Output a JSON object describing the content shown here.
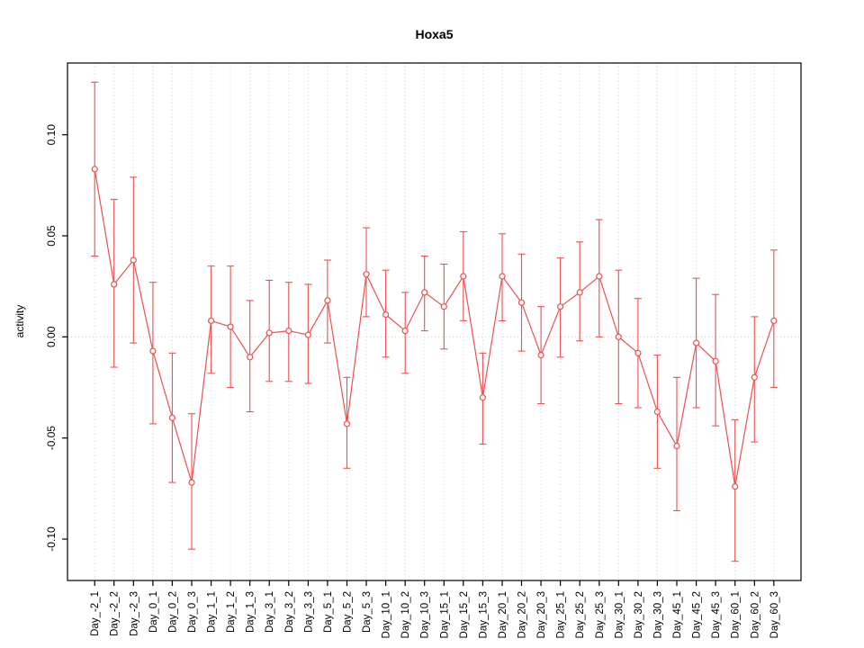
{
  "chart_data": {
    "type": "line",
    "title": "Hoxa5",
    "xlabel": "",
    "ylabel": "activity",
    "ylim": [
      -0.1205,
      0.1355
    ],
    "yticks": [
      -0.1,
      -0.05,
      0.0,
      0.05,
      0.1
    ],
    "ytick_labels": [
      "-0.10",
      "-0.05",
      "0.00",
      "0.05",
      "0.10"
    ],
    "grid": "dotted vertical gridlines at each category, dotted horizontal line at 0",
    "legend_position": "none",
    "line_color": "#ee5050",
    "grid_color": "#d4d4d4",
    "axis_color": "#000000",
    "categories": [
      "Day_-2_1",
      "Day_-2_2",
      "Day_-2_3",
      "Day_0_1",
      "Day_0_2",
      "Day_0_3",
      "Day_1_1",
      "Day_1_2",
      "Day_1_3",
      "Day_3_1",
      "Day_3_2",
      "Day_3_3",
      "Day_5_1",
      "Day_5_2",
      "Day_5_3",
      "Day_10_1",
      "Day_10_2",
      "Day_10_3",
      "Day_15_1",
      "Day_15_2",
      "Day_15_3",
      "Day_20_1",
      "Day_20_2",
      "Day_20_3",
      "Day_25_1",
      "Day_25_2",
      "Day_25_3",
      "Day_30_1",
      "Day_30_2",
      "Day_30_3",
      "Day_45_1",
      "Day_45_2",
      "Day_45_3",
      "Day_60_1",
      "Day_60_2",
      "Day_60_3"
    ],
    "values": [
      0.083,
      0.026,
      0.038,
      -0.007,
      -0.04,
      -0.072,
      0.008,
      0.005,
      -0.01,
      0.002,
      0.003,
      0.001,
      0.018,
      -0.043,
      0.031,
      0.011,
      0.003,
      0.022,
      0.015,
      0.03,
      -0.03,
      0.03,
      0.017,
      -0.009,
      0.015,
      0.022,
      0.03,
      0.0,
      -0.008,
      -0.037,
      -0.054,
      -0.003,
      -0.012,
      -0.074,
      -0.02,
      0.008
    ],
    "err_low": [
      0.04,
      -0.015,
      -0.003,
      -0.043,
      -0.072,
      -0.105,
      -0.018,
      -0.025,
      -0.037,
      -0.022,
      -0.022,
      -0.023,
      -0.003,
      -0.065,
      0.01,
      -0.01,
      -0.018,
      0.003,
      -0.006,
      0.008,
      -0.053,
      0.008,
      -0.007,
      -0.033,
      -0.01,
      -0.002,
      0.0,
      -0.033,
      -0.035,
      -0.065,
      -0.086,
      -0.035,
      -0.044,
      -0.111,
      -0.052,
      -0.025
    ],
    "err_high": [
      0.126,
      0.068,
      0.079,
      0.027,
      -0.008,
      -0.038,
      0.035,
      0.035,
      0.018,
      0.028,
      0.027,
      0.026,
      0.038,
      -0.02,
      0.054,
      0.033,
      0.022,
      0.04,
      0.036,
      0.052,
      -0.008,
      0.051,
      0.041,
      0.015,
      0.039,
      0.047,
      0.058,
      0.033,
      0.019,
      -0.009,
      -0.02,
      0.029,
      0.021,
      -0.041,
      0.01,
      0.043
    ]
  }
}
